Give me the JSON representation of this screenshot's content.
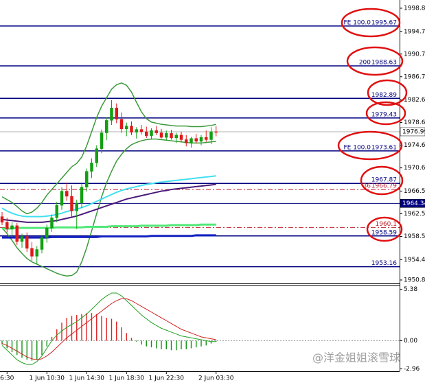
{
  "chart_data": [
    {
      "type": "candlestick",
      "categories": [
        null,
        "6:30",
        null,
        null,
        null,
        null,
        null,
        null,
        null,
        "1 Jun 10:30",
        null,
        null,
        null,
        null,
        null,
        null,
        null,
        "1 Jun 14:30",
        null,
        null,
        null,
        null,
        null,
        null,
        null,
        "1 Jun 18:30",
        null,
        null,
        null,
        null,
        null,
        null,
        null,
        "1 Jun 22:30",
        null,
        null,
        null,
        null,
        null,
        null,
        null,
        null,
        null,
        "2 Jun 03:30"
      ],
      "open": [
        1962.0,
        1961.0,
        1959.8,
        1960.4,
        1957.6,
        1958.5,
        1956.4,
        1955.0,
        1956.2,
        1958.3,
        1960.0,
        1961.8,
        1964.0,
        1966.5,
        1965.6,
        1963.0,
        1964.4,
        1967.2,
        1970.0,
        1971.5,
        1974.0,
        1976.8,
        1979.0,
        1981.2,
        1979.2,
        1977.5,
        1978.0,
        1976.9,
        1977.4,
        1977.0,
        1976.3,
        1977.2,
        1976.8,
        1976.0,
        1976.7,
        1975.9,
        1976.4,
        1975.6,
        1975.0,
        1975.8,
        1975.3,
        1976.0,
        1975.6,
        1977.0
      ],
      "high": [
        1962.8,
        1961.8,
        1961.0,
        1960.9,
        1959.0,
        1959.2,
        1957.5,
        1956.8,
        1958.8,
        1960.6,
        1962.4,
        1964.6,
        1967.2,
        1968.0,
        1967.5,
        1965.0,
        1967.8,
        1970.5,
        1972.3,
        1974.6,
        1977.4,
        1979.5,
        1982.6,
        1982.0,
        1980.4,
        1978.6,
        1978.8,
        1977.8,
        1978.2,
        1977.9,
        1977.6,
        1978.0,
        1977.5,
        1977.2,
        1977.3,
        1976.8,
        1977.0,
        1976.4,
        1976.1,
        1976.6,
        1976.4,
        1977.2,
        1977.8,
        1978.0
      ],
      "low": [
        1960.5,
        1959.2,
        1958.5,
        1957.0,
        1956.5,
        1955.8,
        1954.2,
        1953.6,
        1955.5,
        1957.4,
        1959.3,
        1961.0,
        1963.2,
        1964.8,
        1962.0,
        1959.8,
        1963.5,
        1966.4,
        1968.8,
        1970.8,
        1973.2,
        1975.5,
        1978.2,
        1978.5,
        1976.8,
        1976.2,
        1976.4,
        1975.8,
        1976.5,
        1975.9,
        1975.6,
        1976.4,
        1975.8,
        1975.4,
        1975.6,
        1975.0,
        1975.2,
        1974.4,
        1974.2,
        1974.9,
        1974.6,
        1975.2,
        1974.8,
        1976.2
      ],
      "close": [
        1961.0,
        1959.8,
        1960.4,
        1957.6,
        1958.5,
        1956.4,
        1955.0,
        1956.2,
        1958.3,
        1960.0,
        1961.8,
        1964.0,
        1966.5,
        1965.6,
        1963.0,
        1964.4,
        1967.2,
        1970.0,
        1971.5,
        1974.0,
        1976.8,
        1979.0,
        1981.2,
        1979.2,
        1977.5,
        1978.0,
        1976.9,
        1977.4,
        1977.0,
        1976.3,
        1977.2,
        1976.8,
        1976.0,
        1976.7,
        1975.9,
        1976.4,
        1975.6,
        1975.0,
        1975.8,
        1975.3,
        1976.0,
        1975.6,
        1977.0,
        1976.99
      ],
      "up_color": "#12a012",
      "down_color": "#e01818",
      "ylim": [
        1950.2,
        2000.26
      ],
      "yticks": [
        1950.81,
        1954.41,
        1958.51,
        1962.51,
        1966.51,
        1970.61,
        1974.61,
        1978.61,
        1982.61,
        1986.71,
        1990.71,
        1994.71,
        1998.81
      ],
      "series": [
        {
          "color": "#3a9a3a",
          "width": 1.5,
          "values": [
            1965.5,
            1965,
            1964.5,
            1963.8,
            1963,
            1962.5,
            1962.8,
            1963.5,
            1964.5,
            1965.8,
            1966.8,
            1967.8,
            1968.8,
            1969.8,
            1970.8,
            1971.4,
            1972.5,
            1974.5,
            1977,
            1979.5,
            1981.5,
            1983,
            1984.5,
            1985.3,
            1985.6,
            1985.2,
            1984,
            1982.2,
            1980.5,
            1979.3,
            1978.7,
            1978.5,
            1978.3,
            1978.2,
            1978.1,
            1978,
            1978,
            1978,
            1977.9,
            1977.9,
            1977.9,
            1978,
            1978.1,
            1978.3
          ]
        },
        {
          "color": "#3a9a3a",
          "width": 1.5,
          "values": [
            1960,
            1959,
            1957.8,
            1956.5,
            1955.5,
            1954.6,
            1954,
            1953.6,
            1953.2,
            1952.8,
            1952.4,
            1952,
            1951.7,
            1951.5,
            1951.6,
            1952.2,
            1954,
            1956.5,
            1959.5,
            1962.5,
            1965.5,
            1968,
            1970,
            1971.8,
            1973,
            1974,
            1974.7,
            1975.1,
            1975.4,
            1975.6,
            1975.7,
            1975.7,
            1975.6,
            1975.5,
            1975.4,
            1975.3,
            1975.2,
            1975.1,
            1975,
            1975,
            1975,
            1975.1,
            1975.2,
            1975.3
          ]
        },
        {
          "color": "#40e0f0",
          "width": 2,
          "values": [
            1963.5,
            1963,
            1962.6,
            1962.3,
            1962.1,
            1962,
            1962,
            1962,
            1962,
            1962.1,
            1962.2,
            1962.4,
            1962.6,
            1962.9,
            1963.1,
            1963.3,
            1963.6,
            1963.9,
            1964.3,
            1964.7,
            1965.1,
            1965.5,
            1965.9,
            1966.3,
            1966.6,
            1966.9,
            1967.1,
            1967.3,
            1967.5,
            1967.7,
            1967.8,
            1968,
            1968.1,
            1968.2,
            1968.3,
            1968.4,
            1968.5,
            1968.6,
            1968.7,
            1968.8,
            1968.9,
            1969,
            1969.1,
            1969.2
          ]
        },
        {
          "color": "#4b1a7a",
          "width": 2,
          "values": [
            1961.5,
            1961.4,
            1961.3,
            1961.2,
            1961.1,
            1961,
            1961,
            1961,
            1961,
            1961.1,
            1961.2,
            1961.3,
            1961.5,
            1961.7,
            1961.9,
            1962.1,
            1962.4,
            1962.7,
            1963,
            1963.3,
            1963.6,
            1963.9,
            1964.2,
            1964.5,
            1964.8,
            1965.1,
            1965.3,
            1965.5,
            1965.7,
            1965.9,
            1966.1,
            1966.3,
            1966.5,
            1966.6,
            1966.8,
            1966.9,
            1967,
            1967.1,
            1967.2,
            1967.3,
            1967.4,
            1967.5,
            1967.6,
            1967.7
          ]
        },
        {
          "color": "#50e878",
          "width": 3,
          "values": [
            1959.9,
            1959.9,
            1959.9,
            1960,
            1960,
            1960,
            1960,
            1960,
            1960,
            1960,
            1960,
            1960.1,
            1960.1,
            1960.1,
            1960.1,
            1960.1,
            1960.1,
            1960.2,
            1960.2,
            1960.2,
            1960.2,
            1960.2,
            1960.3,
            1960.3,
            1960.3,
            1960.3,
            1960.3,
            1960.3,
            1960.4,
            1960.4,
            1960.4,
            1960.4,
            1960.4,
            1960.4,
            1960.5,
            1960.5,
            1960.5,
            1960.5,
            1960.5,
            1960.5,
            1960.6,
            1960.6,
            1960.6,
            1960.6
          ]
        },
        {
          "color": "#1020c0",
          "width": 3,
          "values": [
            1958.3,
            1958.3,
            1958.3,
            1958.3,
            1958.3,
            1958.3,
            1958.3,
            1958.3,
            1958.3,
            1958.3,
            1958.4,
            1958.4,
            1958.4,
            1958.4,
            1958.4,
            1958.4,
            1958.4,
            1958.4,
            1958.4,
            1958.4,
            1958.5,
            1958.5,
            1958.5,
            1958.5,
            1958.5,
            1958.5,
            1958.5,
            1958.5,
            1958.5,
            1958.5,
            1958.6,
            1958.6,
            1958.6,
            1958.6,
            1958.6,
            1958.6,
            1958.6,
            1958.6,
            1958.6,
            1958.7,
            1958.7,
            1958.7,
            1958.7,
            1958.7
          ]
        }
      ],
      "levels": [
        {
          "value": 1995.67,
          "prefix": "FE 100.0",
          "color": "#000080",
          "dash": false
        },
        {
          "value": 1988.63,
          "prefix": "200",
          "color": "#000080",
          "dash": false
        },
        {
          "value": 1982.89,
          "color": "#000080",
          "dash": false
        },
        {
          "value": 1979.43,
          "color": "#000080",
          "dash": false
        },
        {
          "value": 1973.61,
          "prefix": "FE 100.0",
          "color": "#000080",
          "dash": false
        },
        {
          "value": 1967.87,
          "color": "#000080",
          "dash": false
        },
        {
          "value": 1966.79,
          "prefix": "36",
          "color": "#c02030",
          "dash": true
        },
        {
          "value": 1960.1,
          "color": "#c02030",
          "dash": true
        },
        {
          "value": 1958.59,
          "color": "#000080",
          "dash": false
        },
        {
          "value": 1953.16,
          "color": "#000080",
          "dash": false
        }
      ],
      "markers": [
        {
          "value": 1976.99,
          "color": "#ffffff",
          "text_color": "#000000",
          "line_color": "#b0b0b0"
        },
        {
          "value": 1964.34,
          "color": "#000080",
          "text_color": "#ffffff",
          "line_color": "#000080"
        }
      ]
    },
    {
      "type": "macd",
      "ylim": [
        -3.21,
        5.79
      ],
      "yticks": [
        -2.96,
        {
          "value": 0,
          "label": "0.00"
        },
        5.38
      ],
      "histogram": {
        "pos_color": "#e02020",
        "neg_color": "#109010",
        "values": [
          -0.4,
          -0.8,
          -1.2,
          -1.5,
          -1.8,
          -2.0,
          -2.1,
          -2.0,
          -1.5,
          -0.6,
          0.4,
          1.2,
          1.9,
          2.4,
          2.6,
          2.7,
          2.8,
          2.9,
          2.9,
          2.8,
          2.6,
          2.4,
          2.3,
          2.0,
          1.4,
          0.8,
          0.3,
          -0.1,
          -0.4,
          -0.6,
          -0.7,
          -0.8,
          -0.9,
          -0.9,
          -1.0,
          -1.0,
          -0.9,
          -0.9,
          -0.8,
          -0.7,
          -0.6,
          -0.5,
          -0.3,
          -0.1
        ]
      },
      "series": [
        {
          "color": "#20a020",
          "width": 1,
          "values": [
            -0.5,
            -1.0,
            -1.5,
            -2.0,
            -2.3,
            -2.5,
            -2.5,
            -2.2,
            -1.6,
            -0.8,
            0.0,
            0.6,
            1.0,
            1.4,
            1.7,
            2.0,
            2.4,
            2.8,
            3.3,
            3.8,
            4.3,
            4.7,
            5.0,
            5.0,
            4.7,
            4.2,
            3.7,
            3.2,
            2.7,
            2.3,
            1.9,
            1.6,
            1.3,
            1.1,
            0.9,
            0.7,
            0.5,
            0.4,
            0.3,
            0.2,
            0.1,
            0.0,
            -0.1,
            -0.1
          ]
        },
        {
          "color": "#d02020",
          "width": 1,
          "values": [
            -0.3,
            -0.5,
            -0.8,
            -1.1,
            -1.4,
            -1.7,
            -1.9,
            -2.0,
            -1.9,
            -1.6,
            -1.2,
            -0.7,
            -0.2,
            0.3,
            0.7,
            1.1,
            1.5,
            1.9,
            2.3,
            2.7,
            3.1,
            3.5,
            3.9,
            4.2,
            4.4,
            4.4,
            4.2,
            3.9,
            3.6,
            3.3,
            3.0,
            2.7,
            2.4,
            2.1,
            1.8,
            1.5,
            1.2,
            1.0,
            0.8,
            0.6,
            0.4,
            0.3,
            0.2,
            0.1
          ]
        }
      ]
    }
  ],
  "watermark": "@洋金姐姐滚雪球"
}
